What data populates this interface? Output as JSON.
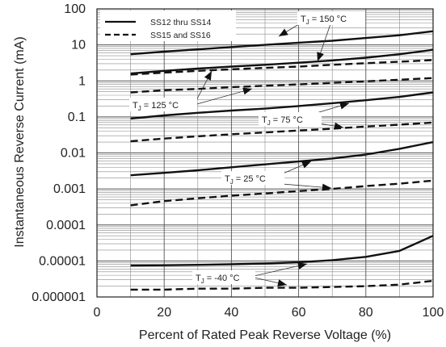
{
  "chart_data": {
    "type": "line",
    "title": "",
    "xlabel": "Percent of Rated Peak Reverse Voltage (%)",
    "ylabel": "Instantaneous Reverse Current (mA)",
    "x_scale": "linear",
    "y_scale": "log",
    "xlim": [
      0,
      100
    ],
    "ylim": [
      1e-06,
      100
    ],
    "x_ticks": [
      "0",
      "20",
      "40",
      "60",
      "80",
      "100"
    ],
    "x_tick_values": [
      0,
      20,
      40,
      60,
      80,
      100
    ],
    "y_ticks": [
      "100",
      "10",
      "1",
      "0.1",
      "0.01",
      "0.001",
      "0.0001",
      "0.00001",
      "0.000001"
    ],
    "y_tick_values": [
      100,
      10,
      1,
      0.1,
      0.01,
      0.001,
      0.0001,
      1e-05,
      1e-06
    ],
    "grid": true,
    "legend": {
      "placement": "top-left",
      "entries": [
        {
          "label": "SS12 thru SS14",
          "style": "solid"
        },
        {
          "label": "SS15 and SS16",
          "style": "dashed"
        }
      ]
    },
    "series": [
      {
        "group": "SS12 thru SS14",
        "style": "solid",
        "temperature": "150 °C",
        "points": [
          [
            10,
            5.5
          ],
          [
            20,
            6.5
          ],
          [
            30,
            7.5
          ],
          [
            40,
            8.7
          ],
          [
            50,
            10
          ],
          [
            60,
            11.5
          ],
          [
            70,
            13
          ],
          [
            80,
            15.5
          ],
          [
            90,
            18.5
          ],
          [
            100,
            24
          ]
        ]
      },
      {
        "group": "SS12 thru SS14",
        "style": "solid",
        "temperature": "125 °C",
        "points": [
          [
            10,
            1.6
          ],
          [
            20,
            1.9
          ],
          [
            30,
            2.2
          ],
          [
            40,
            2.5
          ],
          [
            50,
            2.8
          ],
          [
            60,
            3.2
          ],
          [
            70,
            3.7
          ],
          [
            80,
            4.4
          ],
          [
            90,
            5.5
          ],
          [
            100,
            7.3
          ]
        ]
      },
      {
        "group": "SS15 and SS16",
        "style": "dashed",
        "temperature": "150 °C",
        "points": [
          [
            10,
            1.5
          ],
          [
            20,
            1.7
          ],
          [
            30,
            1.9
          ],
          [
            40,
            2.1
          ],
          [
            50,
            2.3
          ],
          [
            60,
            2.5
          ],
          [
            70,
            2.8
          ],
          [
            80,
            3.1
          ],
          [
            90,
            3.4
          ],
          [
            100,
            3.8
          ]
        ]
      },
      {
        "group": "SS15 and SS16",
        "style": "dashed",
        "temperature": "125 °C",
        "points": [
          [
            10,
            0.48
          ],
          [
            20,
            0.55
          ],
          [
            30,
            0.6
          ],
          [
            40,
            0.67
          ],
          [
            50,
            0.73
          ],
          [
            60,
            0.8
          ],
          [
            70,
            0.88
          ],
          [
            80,
            0.97
          ],
          [
            90,
            1.08
          ],
          [
            100,
            1.2
          ]
        ]
      },
      {
        "group": "SS12 thru SS14",
        "style": "solid",
        "temperature": "75 °C",
        "points": [
          [
            10,
            0.09
          ],
          [
            20,
            0.11
          ],
          [
            30,
            0.13
          ],
          [
            40,
            0.15
          ],
          [
            50,
            0.17
          ],
          [
            60,
            0.2
          ],
          [
            70,
            0.24
          ],
          [
            80,
            0.29
          ],
          [
            90,
            0.36
          ],
          [
            100,
            0.48
          ]
        ]
      },
      {
        "group": "SS15 and SS16",
        "style": "dashed",
        "temperature": "75 °C",
        "points": [
          [
            10,
            0.021
          ],
          [
            20,
            0.025
          ],
          [
            30,
            0.029
          ],
          [
            40,
            0.033
          ],
          [
            50,
            0.037
          ],
          [
            60,
            0.042
          ],
          [
            70,
            0.047
          ],
          [
            80,
            0.054
          ],
          [
            90,
            0.061
          ],
          [
            100,
            0.07
          ]
        ]
      },
      {
        "group": "SS12 thru SS14",
        "style": "solid",
        "temperature": "25 °C",
        "points": [
          [
            10,
            0.0024
          ],
          [
            20,
            0.0028
          ],
          [
            30,
            0.0033
          ],
          [
            40,
            0.004
          ],
          [
            50,
            0.0048
          ],
          [
            60,
            0.0058
          ],
          [
            70,
            0.007
          ],
          [
            80,
            0.009
          ],
          [
            90,
            0.013
          ],
          [
            100,
            0.02
          ]
        ]
      },
      {
        "group": "SS15 and SS16",
        "style": "dashed",
        "temperature": "25 °C",
        "points": [
          [
            10,
            0.00035
          ],
          [
            20,
            0.00046
          ],
          [
            30,
            0.00055
          ],
          [
            40,
            0.00065
          ],
          [
            50,
            0.00075
          ],
          [
            60,
            0.00087
          ],
          [
            70,
            0.001
          ],
          [
            80,
            0.0012
          ],
          [
            90,
            0.0014
          ],
          [
            100,
            0.0017
          ]
        ]
      },
      {
        "group": "SS12 thru SS14",
        "style": "solid",
        "temperature": "-40 °C",
        "points": [
          [
            10,
            7.5e-06
          ],
          [
            20,
            7.6e-06
          ],
          [
            30,
            7.8e-06
          ],
          [
            40,
            8.1e-06
          ],
          [
            50,
            8.5e-06
          ],
          [
            60,
            9.2e-06
          ],
          [
            70,
            1.05e-05
          ],
          [
            80,
            1.3e-05
          ],
          [
            90,
            1.9e-05
          ],
          [
            100,
            5e-05
          ]
        ]
      },
      {
        "group": "SS15 and SS16",
        "style": "dashed",
        "temperature": "-40 °C",
        "points": [
          [
            10,
            1.6e-06
          ],
          [
            20,
            1.6e-06
          ],
          [
            30,
            1.7e-06
          ],
          [
            40,
            1.7e-06
          ],
          [
            50,
            1.8e-06
          ],
          [
            60,
            1.8e-06
          ],
          [
            70,
            1.9e-06
          ],
          [
            80,
            2e-06
          ],
          [
            90,
            2.2e-06
          ],
          [
            100,
            2.8e-06
          ]
        ]
      }
    ],
    "annotations": [
      {
        "main": "T",
        "sub": "J",
        "rest": " = 150 °C"
      },
      {
        "main": "T",
        "sub": "J",
        "rest": " = 125 °C"
      },
      {
        "main": "T",
        "sub": "J",
        "rest": " = 75 °C"
      },
      {
        "main": "T",
        "sub": "J",
        "rest": " = 25 °C"
      },
      {
        "main": "T",
        "sub": "J",
        "rest": " = -40 °C"
      }
    ]
  }
}
